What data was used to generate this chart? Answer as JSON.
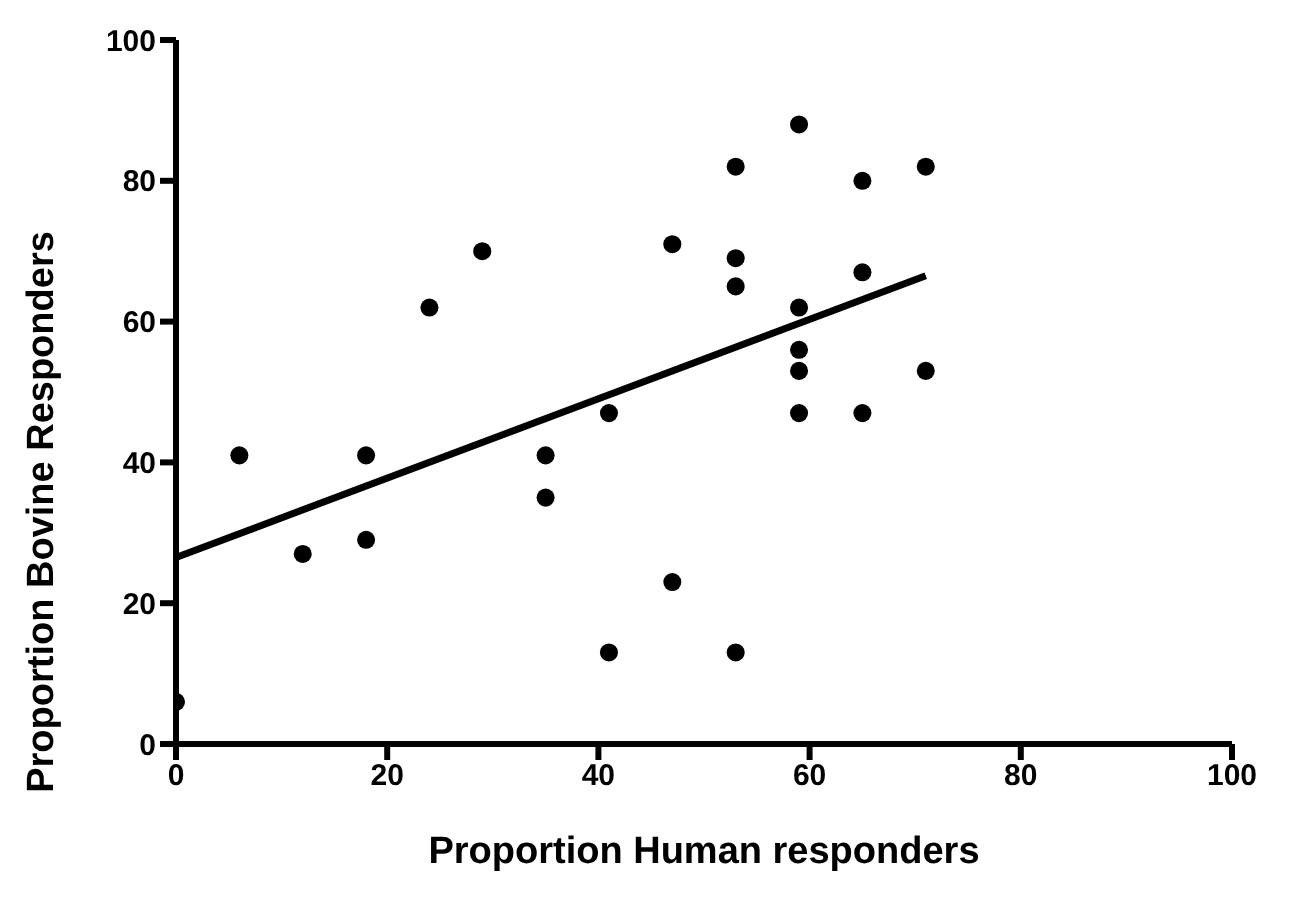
{
  "chart_data": {
    "type": "scatter",
    "xlabel": "Proportion Human responders",
    "ylabel": "Proportion Bovine Responders",
    "xlim": [
      0,
      100
    ],
    "ylim": [
      0,
      100
    ],
    "xticks": [
      0,
      20,
      40,
      60,
      80,
      100
    ],
    "yticks": [
      0,
      20,
      40,
      60,
      80,
      100
    ],
    "grid": false,
    "marker": "circle",
    "series": [
      {
        "color": "#000000",
        "x": [
          0,
          6,
          12,
          18,
          18,
          24,
          29,
          35,
          35,
          41,
          41,
          47,
          47,
          53,
          53,
          53,
          53,
          59,
          59,
          59,
          59,
          59,
          65,
          65,
          65,
          71,
          71
        ],
        "values": [
          6,
          41,
          27,
          41,
          29,
          62,
          70,
          41,
          35,
          47,
          13,
          71,
          23,
          82,
          69,
          65,
          13,
          88,
          62,
          56,
          53,
          47,
          80,
          67,
          47,
          82,
          53
        ]
      },
      {
        "type": "line",
        "color": "#000000",
        "x": [
          0,
          71
        ],
        "values": [
          26.5,
          66.5
        ],
        "marker": "none",
        "line_style": "solid"
      }
    ]
  }
}
